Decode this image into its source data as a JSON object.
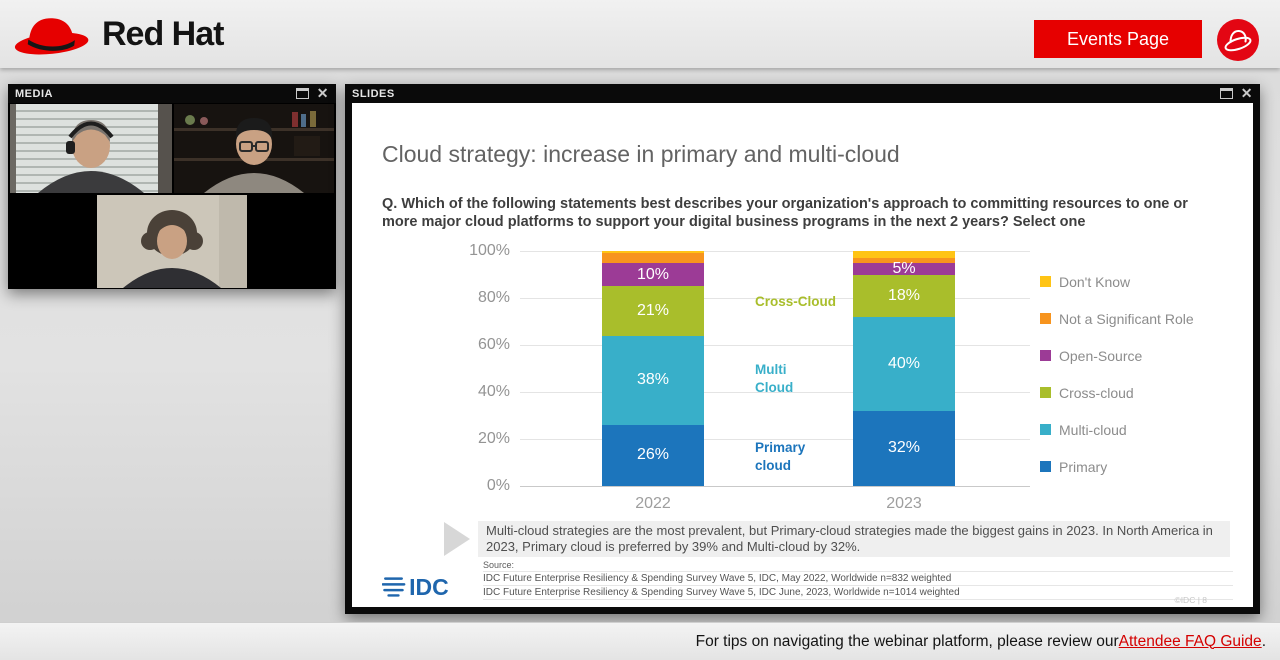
{
  "header": {
    "brand": "Red Hat",
    "events_button": "Events Page"
  },
  "media_panel": {
    "title": "MEDIA"
  },
  "slides_panel": {
    "title": "SLIDES",
    "slide": {
      "title": "Cloud strategy: increase in primary and multi-cloud",
      "question": "Q. Which of the following statements best describes your organization's approach to committing resources to one or more major cloud platforms to support your digital business programs in the next 2 years? Select one",
      "note": "Multi-cloud strategies are the most prevalent, but Primary-cloud strategies made the biggest gains in 2023.  In North America in 2023, Primary cloud is preferred by 39% and Multi-cloud by 32%.",
      "source_label": "Source:",
      "source_lines": [
        "IDC Future Enterprise Resiliency & Spending Survey Wave 5, IDC, May 2022, Worldwide n=832 weighted",
        "IDC Future Enterprise Resiliency & Spending Survey Wave 5, IDC June, 2023, Worldwide n=1014 weighted"
      ],
      "idc_logo_text": "IDC",
      "page_footer": "©IDC |  8"
    }
  },
  "chart_data": {
    "type": "bar",
    "subtype": "stacked-percent",
    "title": "Cloud strategy: increase in primary and multi-cloud",
    "categories": [
      "2022",
      "2023"
    ],
    "series": [
      {
        "name": "Primary",
        "color": "#1C75BC",
        "values": [
          26,
          32
        ],
        "labels": [
          "26%",
          "32%"
        ]
      },
      {
        "name": "Multi-cloud",
        "color": "#38AFC9",
        "values": [
          38,
          40
        ],
        "labels": [
          "38%",
          "40%"
        ]
      },
      {
        "name": "Cross-cloud",
        "color": "#A9BE2B",
        "values": [
          21,
          18
        ],
        "labels": [
          "21%",
          "18%"
        ]
      },
      {
        "name": "Open-Source",
        "color": "#9C3B96",
        "values": [
          10,
          5
        ],
        "labels": [
          "10%",
          "5%"
        ]
      },
      {
        "name": "Not a Significant Role",
        "color": "#F7941E",
        "values": [
          4,
          2
        ],
        "labels": [
          "",
          ""
        ]
      },
      {
        "name": "Don't Know",
        "color": "#FFC415",
        "values": [
          1,
          3
        ],
        "labels": [
          "",
          ""
        ]
      }
    ],
    "ylim": [
      0,
      100
    ],
    "y_ticks": [
      "0%",
      "20%",
      "40%",
      "60%",
      "80%",
      "100%"
    ],
    "grid": true,
    "legend_position": "right",
    "legend": [
      {
        "label": "Don't Know",
        "color": "#FFC415"
      },
      {
        "label": "Not a Significant Role",
        "color": "#F7941E"
      },
      {
        "label": "Open-Source",
        "color": "#9C3B96"
      },
      {
        "label": "Cross-cloud",
        "color": "#A9BE2B"
      },
      {
        "label": "Multi-cloud",
        "color": "#38AFC9"
      },
      {
        "label": "Primary",
        "color": "#1C75BC"
      }
    ],
    "annotations": [
      {
        "text": "Cross-Cloud",
        "color": "#A9BE2B"
      },
      {
        "text": "Multi\nCloud",
        "color": "#38AFC9"
      },
      {
        "text": "Primary\ncloud",
        "color": "#1C75BC"
      }
    ]
  },
  "footer": {
    "text": "For tips on navigating the webinar platform, please review our ",
    "link": "Attendee FAQ Guide",
    "suffix": "."
  },
  "colors": {
    "brand_red": "#e60000",
    "idc_blue": "#1f66ad"
  }
}
